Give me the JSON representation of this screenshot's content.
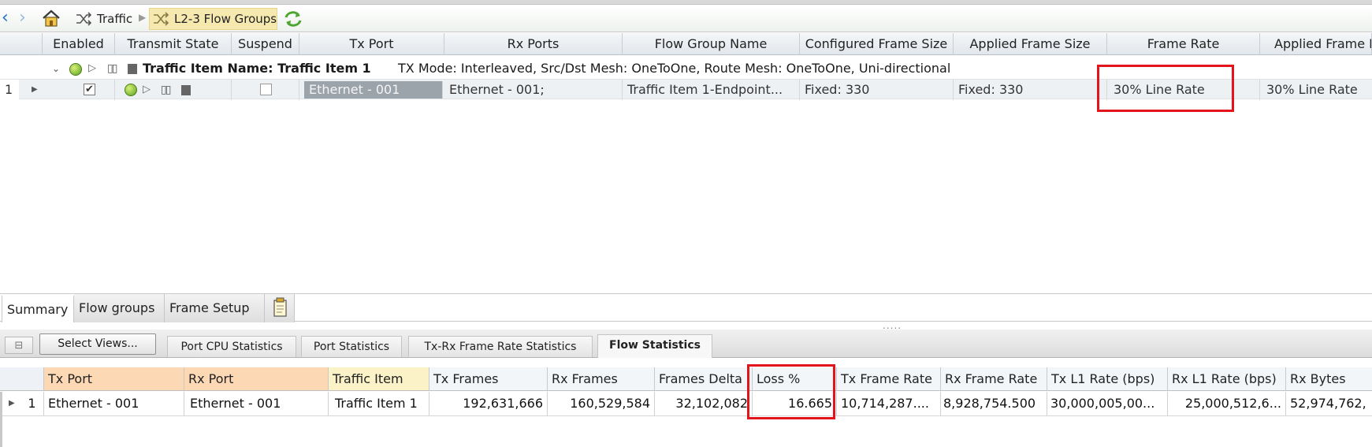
{
  "breadcrumb": {
    "back_glyph": "‹",
    "forward_glyph": "›",
    "items": [
      "Traffic",
      "L2-3 Flow Groups"
    ]
  },
  "flow_grid": {
    "columns": [
      "Enabled",
      "Transmit State",
      "Suspend",
      "Tx Port",
      "Rx Ports",
      "Flow Group Name",
      "Configured Frame Size",
      "Applied Frame Size",
      "Frame Rate",
      "Applied Frame R"
    ],
    "group_row": {
      "title": "Traffic Item Name: Traffic Item 1",
      "details": "TX Mode: Interleaved, Src/Dst Mesh: OneToOne, Route Mesh: OneToOne, Uni-directional"
    },
    "row": {
      "index": "1",
      "enabled": true,
      "suspend": false,
      "tx_port": "Ethernet - 001",
      "rx_ports": "Ethernet - 001;",
      "flow_group_name": "Traffic Item 1-Endpoint...",
      "configured_frame_size": "Fixed: 330",
      "applied_frame_size": "Fixed: 330",
      "frame_rate": "30% Line Rate",
      "applied_frame_rate": "30% Line Rate"
    }
  },
  "bottom_tabs": [
    "Summary",
    "Flow groups",
    "Frame Setup"
  ],
  "views": {
    "select_views_label": "Select Views...",
    "tabs": [
      "Port CPU Statistics",
      "Port Statistics",
      "Tx-Rx Frame Rate Statistics",
      "Flow Statistics"
    ],
    "active_tab": "Flow Statistics",
    "grip": "....."
  },
  "flow_stats": {
    "columns": [
      "Tx Port",
      "Rx Port",
      "Traffic Item",
      "Tx Frames",
      "Rx Frames",
      "Frames Delta",
      "Loss %",
      "Tx Frame Rate",
      "Rx Frame Rate",
      "Tx L1 Rate (bps)",
      "Rx L1 Rate (bps)",
      "Rx Bytes"
    ],
    "row": {
      "index": "1",
      "tx_port": "Ethernet - 001",
      "rx_port": "Ethernet - 001",
      "traffic_item": "Traffic Item 1",
      "tx_frames": "192,631,666",
      "rx_frames": "160,529,584",
      "frames_delta": "32,102,082",
      "loss_pct": "16.665",
      "tx_frame_rate": "10,714,287....",
      "rx_frame_rate": "8,928,754.500",
      "tx_l1_rate": "30,000,005,00...",
      "rx_l1_rate": "25,000,512,6...",
      "rx_bytes": "52,974,762,"
    }
  },
  "colors": {
    "highlight_red": "#e3141c",
    "crumb_active_bg": "#f6e9b0",
    "port_header_orange": "#fdd8b5",
    "traffic_header_yellow": "#fbf2c7",
    "nav_blue": "#1f6fd1"
  }
}
